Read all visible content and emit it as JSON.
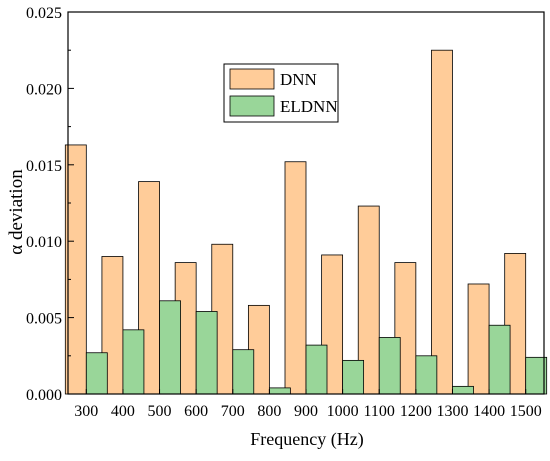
{
  "chart_data": {
    "type": "bar",
    "title": "",
    "xlabel": "Frequency (Hz)",
    "ylabel": "α deviation",
    "categories": [
      "300",
      "400",
      "500",
      "600",
      "700",
      "800",
      "900",
      "1000",
      "1100",
      "1200",
      "1300",
      "1400",
      "1500"
    ],
    "ylim": [
      0,
      0.025
    ],
    "yticks": [
      "0.000",
      "0.005",
      "0.010",
      "0.015",
      "0.020",
      "0.025"
    ],
    "grid": false,
    "legend_position": "top-center",
    "series": [
      {
        "name": "DNN",
        "color": "#FFCC99",
        "values": [
          0.0163,
          0.009,
          0.0139,
          0.0086,
          0.0098,
          0.0058,
          0.0152,
          0.0091,
          0.0123,
          0.0086,
          0.0225,
          0.0072,
          0.0092
        ]
      },
      {
        "name": "ELDNN",
        "color": "#99D699",
        "values": [
          0.0027,
          0.0042,
          0.0061,
          0.0054,
          0.0029,
          0.0004,
          0.0032,
          0.0022,
          0.0037,
          0.0025,
          0.0005,
          0.0045,
          0.0024
        ]
      }
    ]
  }
}
